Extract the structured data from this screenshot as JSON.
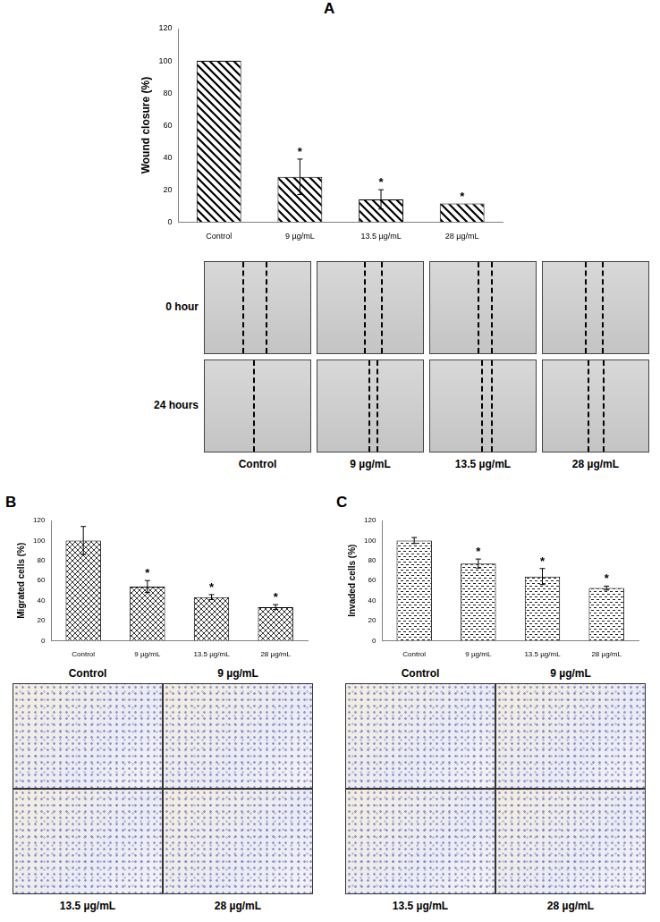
{
  "chart_data": [
    {
      "type": "bar",
      "title": "A",
      "y_label": "Wound closure (%)",
      "categories": [
        "Control",
        "9 µg/mL",
        "13.5 µg/mL",
        "28 µg/mL"
      ],
      "values": [
        100,
        28,
        14,
        11.5
      ],
      "errors": [
        null,
        11,
        6,
        null
      ],
      "annotations": [
        null,
        "*",
        "*",
        "*"
      ],
      "color": "#000000",
      "ylim": [
        0,
        120
      ],
      "yticks": [
        0,
        20,
        40,
        60,
        80,
        100,
        120
      ],
      "grid": false
    },
    {
      "type": "bar",
      "title": "B",
      "y_label": "Migrated cells (%)",
      "categories": [
        "Control",
        "9 µg/mL",
        "13.5 µg/mL",
        "28 µg/mL"
      ],
      "values": [
        100,
        54,
        43.5,
        33.5
      ],
      "errors": [
        14,
        6,
        2.5,
        2.5
      ],
      "annotations": [
        null,
        "*",
        "*",
        "*"
      ],
      "color": "#000000",
      "ylim": [
        0,
        120
      ],
      "yticks": [
        0,
        20,
        40,
        60,
        80,
        100,
        120
      ],
      "grid": false
    },
    {
      "type": "bar",
      "title": "C",
      "y_label": "Invaded cells (%)",
      "categories": [
        "Control",
        "9 µg/mL",
        "13.5 µg/mL",
        "28 µg/mL"
      ],
      "values": [
        100,
        77,
        64,
        52.5
      ],
      "errors": [
        3,
        4.5,
        8,
        2
      ],
      "annotations": [
        null,
        "*",
        "*",
        "*"
      ],
      "color": "#000000",
      "ylim": [
        0,
        120
      ],
      "yticks": [
        0,
        20,
        40,
        60,
        80,
        100,
        120
      ],
      "grid": false
    }
  ],
  "images": [
    {
      "row_labels": [
        "0 hour",
        "24 hours"
      ],
      "column_labels": [
        "Control",
        "9 µg/mL",
        "13.5 µg/mL",
        "28 µg/mL"
      ]
    },
    {
      "labels": [
        "Control",
        "9 µg/mL",
        "13.5 µg/mL",
        "28 µg/mL"
      ]
    },
    {
      "labels": [
        "Control",
        "9 µg/mL",
        "13.5 µg/mL",
        "28 µg/mL"
      ]
    }
  ]
}
